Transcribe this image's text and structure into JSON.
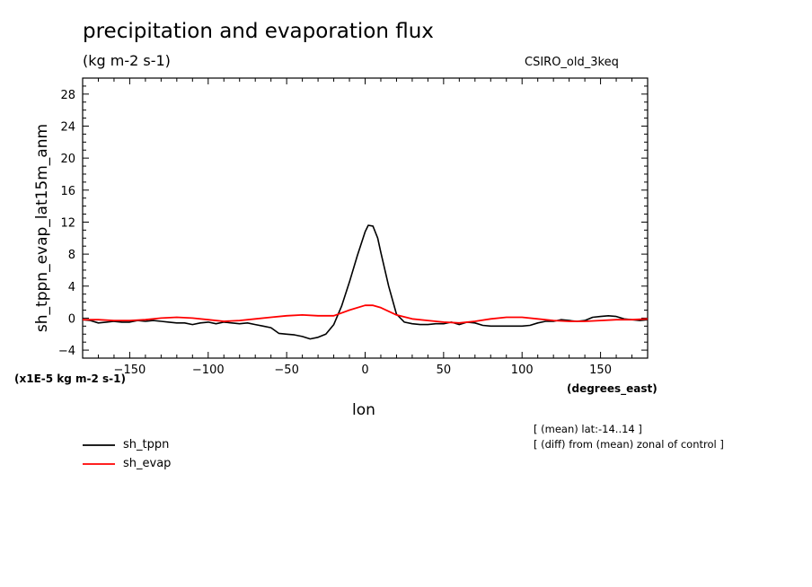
{
  "chart_data": {
    "type": "line",
    "title": "precipitation and evaporation flux",
    "subtitle": "(kg m-2 s-1)",
    "model_label": "CSIRO_old_3keq",
    "ylabel": "sh_tppn_evap_lat15m_anm",
    "xlabel": "lon",
    "x_units": "(degrees_east)",
    "y_scale_note": "(x1E-5 kg m-2 s-1)",
    "xlim": [
      -180,
      180
    ],
    "ylim": [
      -5,
      30
    ],
    "x_ticks": [
      -150,
      -100,
      -50,
      0,
      50,
      100,
      150
    ],
    "y_ticks": [
      -4,
      0,
      4,
      8,
      12,
      16,
      20,
      24,
      28
    ],
    "notes": [
      "[ (mean) lat:-14..14 ]",
      "[ (diff) from (mean) zonal of control ]"
    ],
    "legend_position": "bottom-left",
    "grid": false,
    "series": [
      {
        "name": "sh_tppn",
        "color": "#000000",
        "x": [
          -180,
          -175,
          -170,
          -165,
          -160,
          -155,
          -150,
          -145,
          -140,
          -135,
          -130,
          -125,
          -120,
          -115,
          -110,
          -105,
          -100,
          -95,
          -90,
          -85,
          -80,
          -75,
          -70,
          -65,
          -60,
          -55,
          -50,
          -45,
          -40,
          -35,
          -30,
          -25,
          -20,
          -15,
          -10,
          -5,
          0,
          2,
          5,
          8,
          10,
          15,
          20,
          25,
          30,
          35,
          40,
          45,
          50,
          55,
          60,
          65,
          70,
          75,
          80,
          85,
          90,
          95,
          100,
          105,
          110,
          115,
          120,
          125,
          130,
          135,
          140,
          145,
          150,
          155,
          160,
          165,
          170,
          175,
          180
        ],
        "y": [
          -0.2,
          -0.3,
          -0.6,
          -0.5,
          -0.4,
          -0.5,
          -0.5,
          -0.3,
          -0.4,
          -0.3,
          -0.4,
          -0.5,
          -0.6,
          -0.6,
          -0.8,
          -0.6,
          -0.5,
          -0.7,
          -0.5,
          -0.6,
          -0.7,
          -0.6,
          -0.8,
          -1.0,
          -1.2,
          -1.9,
          -2.0,
          -2.1,
          -2.3,
          -2.6,
          -2.4,
          -2.0,
          -0.8,
          1.5,
          4.5,
          7.8,
          10.8,
          11.6,
          11.5,
          10.0,
          8.2,
          4.0,
          0.5,
          -0.5,
          -0.7,
          -0.8,
          -0.8,
          -0.7,
          -0.7,
          -0.5,
          -0.8,
          -0.5,
          -0.6,
          -0.9,
          -1.0,
          -1.0,
          -1.0,
          -1.0,
          -1.0,
          -0.9,
          -0.6,
          -0.4,
          -0.4,
          -0.2,
          -0.3,
          -0.4,
          -0.3,
          0.1,
          0.2,
          0.3,
          0.2,
          -0.1,
          -0.2,
          -0.3,
          -0.2
        ]
      },
      {
        "name": "sh_evap",
        "color": "#ff0000",
        "x": [
          -180,
          -170,
          -160,
          -150,
          -140,
          -130,
          -120,
          -110,
          -100,
          -90,
          -80,
          -70,
          -60,
          -50,
          -40,
          -30,
          -20,
          -10,
          0,
          5,
          10,
          20,
          30,
          40,
          50,
          60,
          70,
          80,
          90,
          100,
          110,
          120,
          130,
          140,
          150,
          160,
          170,
          180
        ],
        "y": [
          -0.2,
          -0.2,
          -0.3,
          -0.3,
          -0.2,
          0.0,
          0.1,
          0.0,
          -0.2,
          -0.4,
          -0.3,
          -0.1,
          0.1,
          0.3,
          0.4,
          0.3,
          0.3,
          1.0,
          1.6,
          1.6,
          1.3,
          0.4,
          -0.1,
          -0.3,
          -0.5,
          -0.6,
          -0.4,
          -0.1,
          0.1,
          0.1,
          -0.1,
          -0.3,
          -0.4,
          -0.4,
          -0.3,
          -0.2,
          -0.2,
          -0.1
        ]
      }
    ]
  }
}
